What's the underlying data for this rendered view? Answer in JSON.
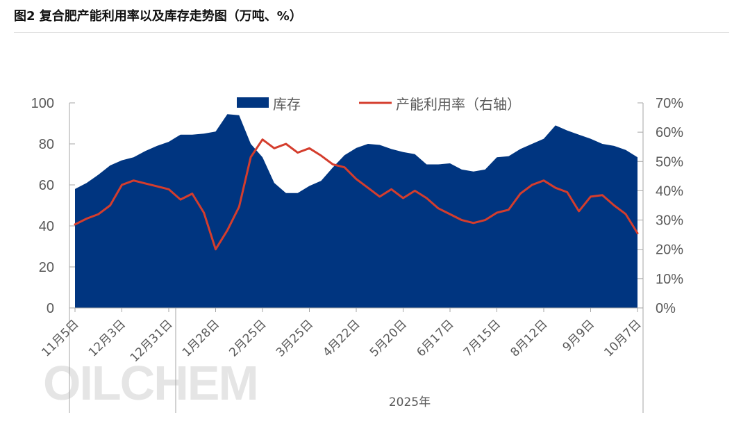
{
  "title": "图2  复合肥产能利用率以及库存走势图（万吨、%）",
  "watermark": "OILCHEM",
  "year_label": "2025年",
  "colors": {
    "inventory": "#003580",
    "utilization": "#d43d2d",
    "axis": "#a6a6a6",
    "text": "#595959"
  },
  "chart_data": {
    "type": "area+line",
    "legend": {
      "placement": "top-center",
      "items": [
        "库存",
        "产能利用率（右轴）"
      ]
    },
    "grid": false,
    "ylim": [
      0,
      100
    ],
    "y2lim": [
      0,
      70
    ],
    "yticks": [
      "0",
      "20",
      "40",
      "60",
      "80",
      "100"
    ],
    "y2ticks": [
      "0%",
      "10%",
      "20%",
      "30%",
      "40%",
      "50%",
      "60%",
      "70%"
    ],
    "x_tick_labels": [
      "11月5日",
      "12月3日",
      "12月31日",
      "1月28日",
      "2月25日",
      "3月25日",
      "4月22日",
      "5月20日",
      "6月17日",
      "7月15日",
      "8月12日",
      "9月9日",
      "10月7日"
    ],
    "x_label_index": [
      0,
      4,
      8,
      12,
      16,
      20,
      24,
      28,
      32,
      36,
      40,
      44,
      48
    ],
    "series": [
      {
        "name": "库存",
        "type": "area",
        "axis": "left",
        "values": [
          58,
          61,
          65,
          69.5,
          72,
          73.5,
          76.5,
          79,
          81,
          84.5,
          84.5,
          85,
          86,
          94.5,
          94,
          80,
          73.5,
          61,
          56,
          56,
          59.5,
          62,
          68.5,
          74.5,
          78,
          80,
          79.5,
          77.5,
          76,
          75,
          70,
          70,
          70.5,
          67.5,
          66.5,
          67.5,
          73.5,
          74,
          77.5,
          80,
          82.5,
          89,
          86.5,
          84.5,
          82.5,
          80,
          79,
          77,
          73.5
        ]
      },
      {
        "name": "产能利用率（右轴）",
        "type": "line",
        "axis": "right",
        "values": [
          28.5,
          30.5,
          32,
          35,
          42,
          43.5,
          42.5,
          41.5,
          40.5,
          37,
          39,
          32.5,
          20,
          26.5,
          34.5,
          51.5,
          57.5,
          54.5,
          56,
          53,
          54.5,
          52,
          49,
          48,
          44,
          41,
          38,
          40.5,
          37.5,
          40,
          37.5,
          34,
          32,
          30,
          29,
          30,
          32.5,
          33.5,
          39,
          42,
          43.5,
          41,
          39.5,
          33,
          38,
          38.5,
          35,
          32,
          25.5
        ]
      }
    ]
  }
}
